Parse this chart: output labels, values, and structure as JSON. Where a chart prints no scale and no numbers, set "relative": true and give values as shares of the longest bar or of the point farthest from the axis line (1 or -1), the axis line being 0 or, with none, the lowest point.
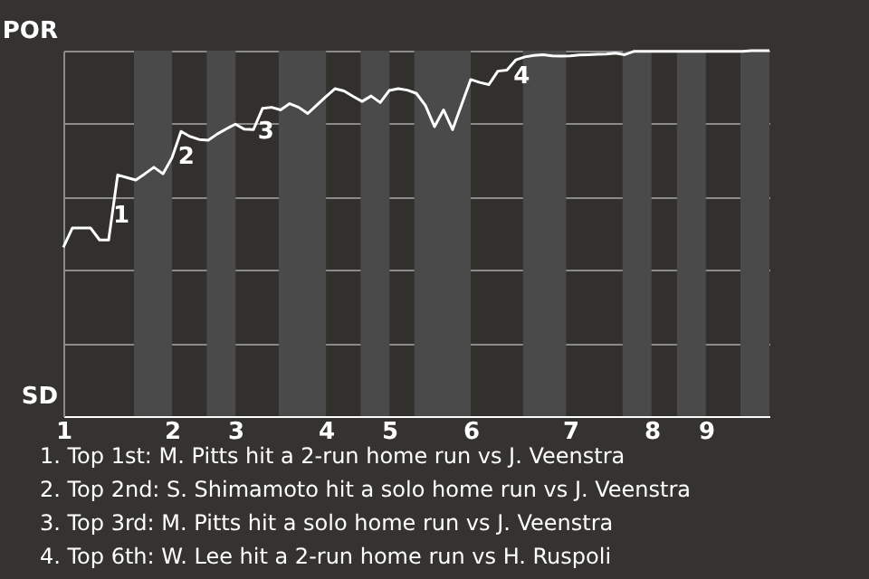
{
  "chart_data": {
    "type": "line",
    "relative": true,
    "categories": [
      "1",
      null,
      null,
      null,
      null,
      null,
      null,
      null,
      null,
      null,
      null,
      null,
      "2",
      null,
      null,
      null,
      null,
      null,
      null,
      "3",
      null,
      null,
      null,
      null,
      null,
      null,
      null,
      null,
      null,
      "4",
      null,
      null,
      null,
      null,
      null,
      null,
      "5",
      null,
      null,
      null,
      null,
      null,
      null,
      null,
      null,
      "6",
      null,
      null,
      null,
      null,
      null,
      null,
      null,
      null,
      null,
      null,
      "7",
      null,
      null,
      null,
      null,
      null,
      null,
      null,
      null,
      "8",
      null,
      null,
      null,
      null,
      null,
      "9",
      null,
      null,
      null,
      null,
      null,
      null,
      null
    ],
    "series": [
      {
        "color": "#ffffff",
        "values": [
          0.462,
          0.515,
          0.515,
          0.515,
          0.482,
          0.482,
          0.66,
          0.653,
          0.646,
          0.663,
          0.681,
          0.663,
          0.707,
          0.779,
          0.765,
          0.757,
          0.755,
          0.772,
          0.786,
          0.799,
          0.785,
          0.784,
          0.842,
          0.845,
          0.838,
          0.855,
          0.845,
          0.828,
          0.851,
          0.874,
          0.896,
          0.89,
          0.875,
          0.861,
          0.876,
          0.858,
          0.891,
          0.896,
          0.892,
          0.883,
          0.85,
          0.792,
          0.838,
          0.784,
          0.853,
          0.921,
          0.913,
          0.907,
          0.944,
          0.947,
          0.975,
          0.983,
          0.987,
          0.989,
          0.986,
          0.985,
          0.986,
          0.988,
          0.989,
          0.99,
          0.991,
          0.993,
          0.989,
          0.998,
          0.998,
          0.998,
          0.998,
          0.998,
          0.998,
          0.998,
          0.998,
          0.998,
          0.998,
          0.998,
          0.998,
          0.998,
          1,
          1,
          1
        ]
      }
    ],
    "grid": "y",
    "marker": "none",
    "line_style": "solid",
    "annotations": [
      "POR",
      "SD",
      "1",
      "2",
      "3",
      "4",
      "1. Top 1st: M. Pitts hit a 2-run home run vs J. Veenstra",
      "2. Top 2nd: S. Shimamoto hit a solo home run vs J. Veenstra",
      "3. Top 3rd: M. Pitts hit a solo home run vs J. Veenstra",
      "4. Top 6th: W. Lee hit a 2-run home run vs H. Ruspoli"
    ]
  }
}
